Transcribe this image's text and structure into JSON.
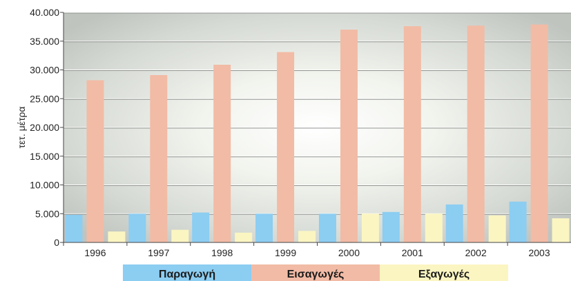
{
  "chart_data": {
    "type": "bar",
    "ylabel": "τετ. μέτρα",
    "ylim": [
      0,
      40000
    ],
    "y_ticks": [
      "0",
      "5.000",
      "10.000",
      "15.000",
      "20.000",
      "25.000",
      "30.000",
      "35.000",
      "40.000"
    ],
    "y_tick_values": [
      0,
      5000,
      10000,
      15000,
      20000,
      25000,
      30000,
      35000,
      40000
    ],
    "categories": [
      "1996",
      "1997",
      "1998",
      "1999",
      "2000",
      "2001",
      "2002",
      "2003"
    ],
    "series": [
      {
        "name": "Παραγωγή",
        "color": "#8ccdf2",
        "values": [
          4800,
          5000,
          5200,
          5000,
          5000,
          5300,
          6600,
          7100
        ]
      },
      {
        "name": "Εισαγωγές",
        "color": "#f2bba5",
        "values": [
          28200,
          29100,
          30900,
          33100,
          37000,
          37600,
          37700,
          37900
        ]
      },
      {
        "name": "Εξαγωγές",
        "color": "#fbf5c2",
        "values": [
          1900,
          2200,
          1700,
          2000,
          5000,
          5000,
          4700,
          4200
        ]
      }
    ],
    "grid": true,
    "legend_position": "bottom"
  }
}
